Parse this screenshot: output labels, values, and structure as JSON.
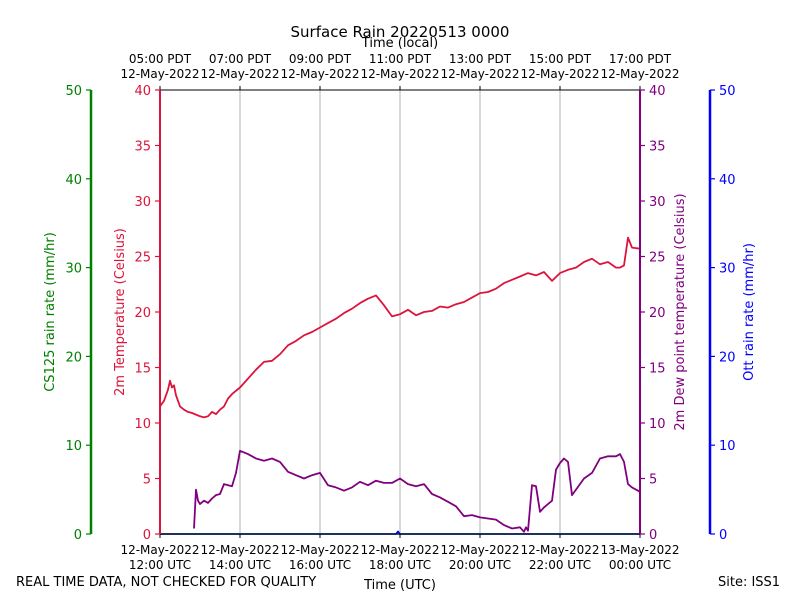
{
  "header": {
    "title": "Surface Rain 20220513 0000",
    "top_axis_label": "Time (local)",
    "bottom_axis_label": "Time (UTC)"
  },
  "footer": {
    "disclaimer": "REAL TIME DATA, NOT CHECKED FOR QUALITY",
    "site": "Site: ISS1"
  },
  "chart_data": {
    "type": "line",
    "title": "Surface Rain 20220513 0000",
    "x_range_utc_hours": [
      12,
      24
    ],
    "top_ticks": [
      {
        "hour": 12,
        "time": "05:00 PDT",
        "date": "12-May-2022"
      },
      {
        "hour": 14,
        "time": "07:00 PDT",
        "date": "12-May-2022"
      },
      {
        "hour": 16,
        "time": "09:00 PDT",
        "date": "12-May-2022"
      },
      {
        "hour": 18,
        "time": "11:00 PDT",
        "date": "12-May-2022"
      },
      {
        "hour": 20,
        "time": "13:00 PDT",
        "date": "12-May-2022"
      },
      {
        "hour": 22,
        "time": "15:00 PDT",
        "date": "12-May-2022"
      },
      {
        "hour": 24,
        "time": "17:00 PDT",
        "date": "12-May-2022"
      }
    ],
    "bottom_ticks": [
      {
        "hour": 12,
        "date": "12-May-2022",
        "time": "12:00 UTC"
      },
      {
        "hour": 14,
        "date": "12-May-2022",
        "time": "14:00 UTC"
      },
      {
        "hour": 16,
        "date": "12-May-2022",
        "time": "16:00 UTC"
      },
      {
        "hour": 18,
        "date": "12-May-2022",
        "time": "18:00 UTC"
      },
      {
        "hour": 20,
        "date": "12-May-2022",
        "time": "20:00 UTC"
      },
      {
        "hour": 22,
        "date": "12-May-2022",
        "time": "22:00 UTC"
      },
      {
        "hour": 24,
        "date": "13-May-2022",
        "time": "00:00 UTC"
      }
    ],
    "axes": {
      "cs125": {
        "label": "CS125 rain rate (mm/hr)",
        "ylim": [
          0,
          50
        ],
        "ticks": [
          0,
          10,
          20,
          30,
          40,
          50
        ],
        "color": "#008000"
      },
      "temperature": {
        "label": "2m Temperature (Celsius)",
        "ylim": [
          0,
          40
        ],
        "ticks": [
          0,
          5,
          10,
          15,
          20,
          25,
          30,
          35,
          40
        ],
        "color": "#dc143c"
      },
      "dewpoint": {
        "label": "2m Dew point temperature (Celsius)",
        "ylim": [
          0,
          40
        ],
        "ticks": [
          0,
          5,
          10,
          15,
          20,
          25,
          30,
          35,
          40
        ],
        "color": "#800080"
      },
      "ott": {
        "label": "Ott rain rate (mm/hr)",
        "ylim": [
          0,
          50
        ],
        "ticks": [
          0,
          10,
          20,
          30,
          40,
          50
        ],
        "color": "#0000ff"
      }
    },
    "series": [
      {
        "name": "2m Temperature",
        "axis": "temperature",
        "color": "#dc143c",
        "x": [
          12.0,
          12.1,
          12.2,
          12.25,
          12.3,
          12.35,
          12.4,
          12.5,
          12.6,
          12.7,
          12.8,
          13.0,
          13.1,
          13.2,
          13.3,
          13.4,
          13.5,
          13.6,
          13.7,
          13.8,
          14.0,
          14.2,
          14.4,
          14.6,
          14.8,
          15.0,
          15.2,
          15.4,
          15.6,
          15.8,
          16.0,
          16.2,
          16.4,
          16.6,
          16.8,
          17.0,
          17.2,
          17.4,
          17.6,
          17.8,
          18.0,
          18.2,
          18.4,
          18.6,
          18.8,
          19.0,
          19.2,
          19.4,
          19.6,
          19.8,
          20.0,
          20.2,
          20.4,
          20.6,
          20.8,
          21.0,
          21.2,
          21.4,
          21.6,
          21.8,
          22.0,
          22.2,
          22.4,
          22.6,
          22.8,
          23.0,
          23.2,
          23.4,
          23.5,
          23.6,
          23.7,
          23.8,
          24.0
        ],
        "values": [
          11.5,
          12.0,
          13.0,
          13.8,
          13.2,
          13.4,
          12.5,
          11.5,
          11.2,
          11.0,
          10.9,
          10.6,
          10.5,
          10.6,
          11.0,
          10.8,
          11.2,
          11.5,
          12.2,
          12.6,
          13.2,
          14.0,
          14.8,
          15.5,
          15.6,
          16.2,
          17.0,
          17.4,
          17.9,
          18.2,
          18.6,
          19.0,
          19.4,
          19.9,
          20.3,
          20.8,
          21.2,
          21.5,
          20.6,
          19.6,
          19.8,
          20.2,
          19.7,
          20.0,
          20.1,
          20.5,
          20.4,
          20.7,
          20.9,
          21.3,
          21.7,
          21.8,
          22.1,
          22.6,
          22.9,
          23.2,
          23.5,
          23.3,
          23.6,
          22.8,
          23.5,
          23.8,
          24.0,
          24.5,
          24.8,
          24.3,
          24.5,
          24.0,
          24.0,
          24.2,
          26.7,
          25.8,
          25.7
        ]
      },
      {
        "name": "2m Dew point temperature",
        "axis": "dewpoint",
        "color": "#800080",
        "x": [
          12.85,
          12.9,
          12.95,
          13.0,
          13.1,
          13.2,
          13.3,
          13.4,
          13.5,
          13.6,
          13.8,
          13.9,
          14.0,
          14.2,
          14.4,
          14.6,
          14.8,
          15.0,
          15.2,
          15.4,
          15.6,
          15.8,
          16.0,
          16.2,
          16.4,
          16.6,
          16.8,
          17.0,
          17.2,
          17.4,
          17.6,
          17.8,
          18.0,
          18.2,
          18.4,
          18.6,
          18.8,
          19.0,
          19.2,
          19.4,
          19.6,
          19.8,
          20.0,
          20.2,
          20.4,
          20.6,
          20.8,
          21.0,
          21.1,
          21.15,
          21.2,
          21.3,
          21.4,
          21.5,
          21.6,
          21.8,
          21.9,
          22.0,
          22.1,
          22.2,
          22.3,
          22.4,
          22.6,
          22.8,
          23.0,
          23.2,
          23.4,
          23.5,
          23.6,
          23.7,
          23.8,
          24.0
        ],
        "values": [
          0.5,
          4.0,
          3.0,
          2.7,
          3.0,
          2.8,
          3.2,
          3.5,
          3.6,
          4.5,
          4.3,
          5.5,
          7.5,
          7.2,
          6.8,
          6.6,
          6.8,
          6.5,
          5.6,
          5.3,
          5.0,
          5.3,
          5.5,
          4.4,
          4.2,
          3.9,
          4.2,
          4.7,
          4.4,
          4.8,
          4.6,
          4.6,
          5.0,
          4.5,
          4.3,
          4.5,
          3.6,
          3.3,
          2.9,
          2.5,
          1.6,
          1.7,
          1.5,
          1.4,
          1.3,
          0.8,
          0.5,
          0.6,
          0.2,
          0.6,
          0.3,
          4.4,
          4.3,
          2.0,
          2.4,
          3.0,
          5.8,
          6.4,
          6.8,
          6.5,
          3.5,
          4.0,
          5.0,
          5.5,
          6.8,
          7.0,
          7.0,
          7.2,
          6.5,
          4.5,
          4.2,
          3.8
        ]
      },
      {
        "name": "CS125 rain rate",
        "axis": "cs125",
        "color": "#008000",
        "x": [
          12,
          24
        ],
        "values": [
          0,
          0
        ]
      },
      {
        "name": "Ott rain rate",
        "axis": "ott",
        "color": "#0000ff",
        "x": [
          12,
          17.9,
          17.95,
          18.0,
          24
        ],
        "values": [
          0,
          0,
          0.3,
          0,
          0
        ]
      }
    ]
  }
}
